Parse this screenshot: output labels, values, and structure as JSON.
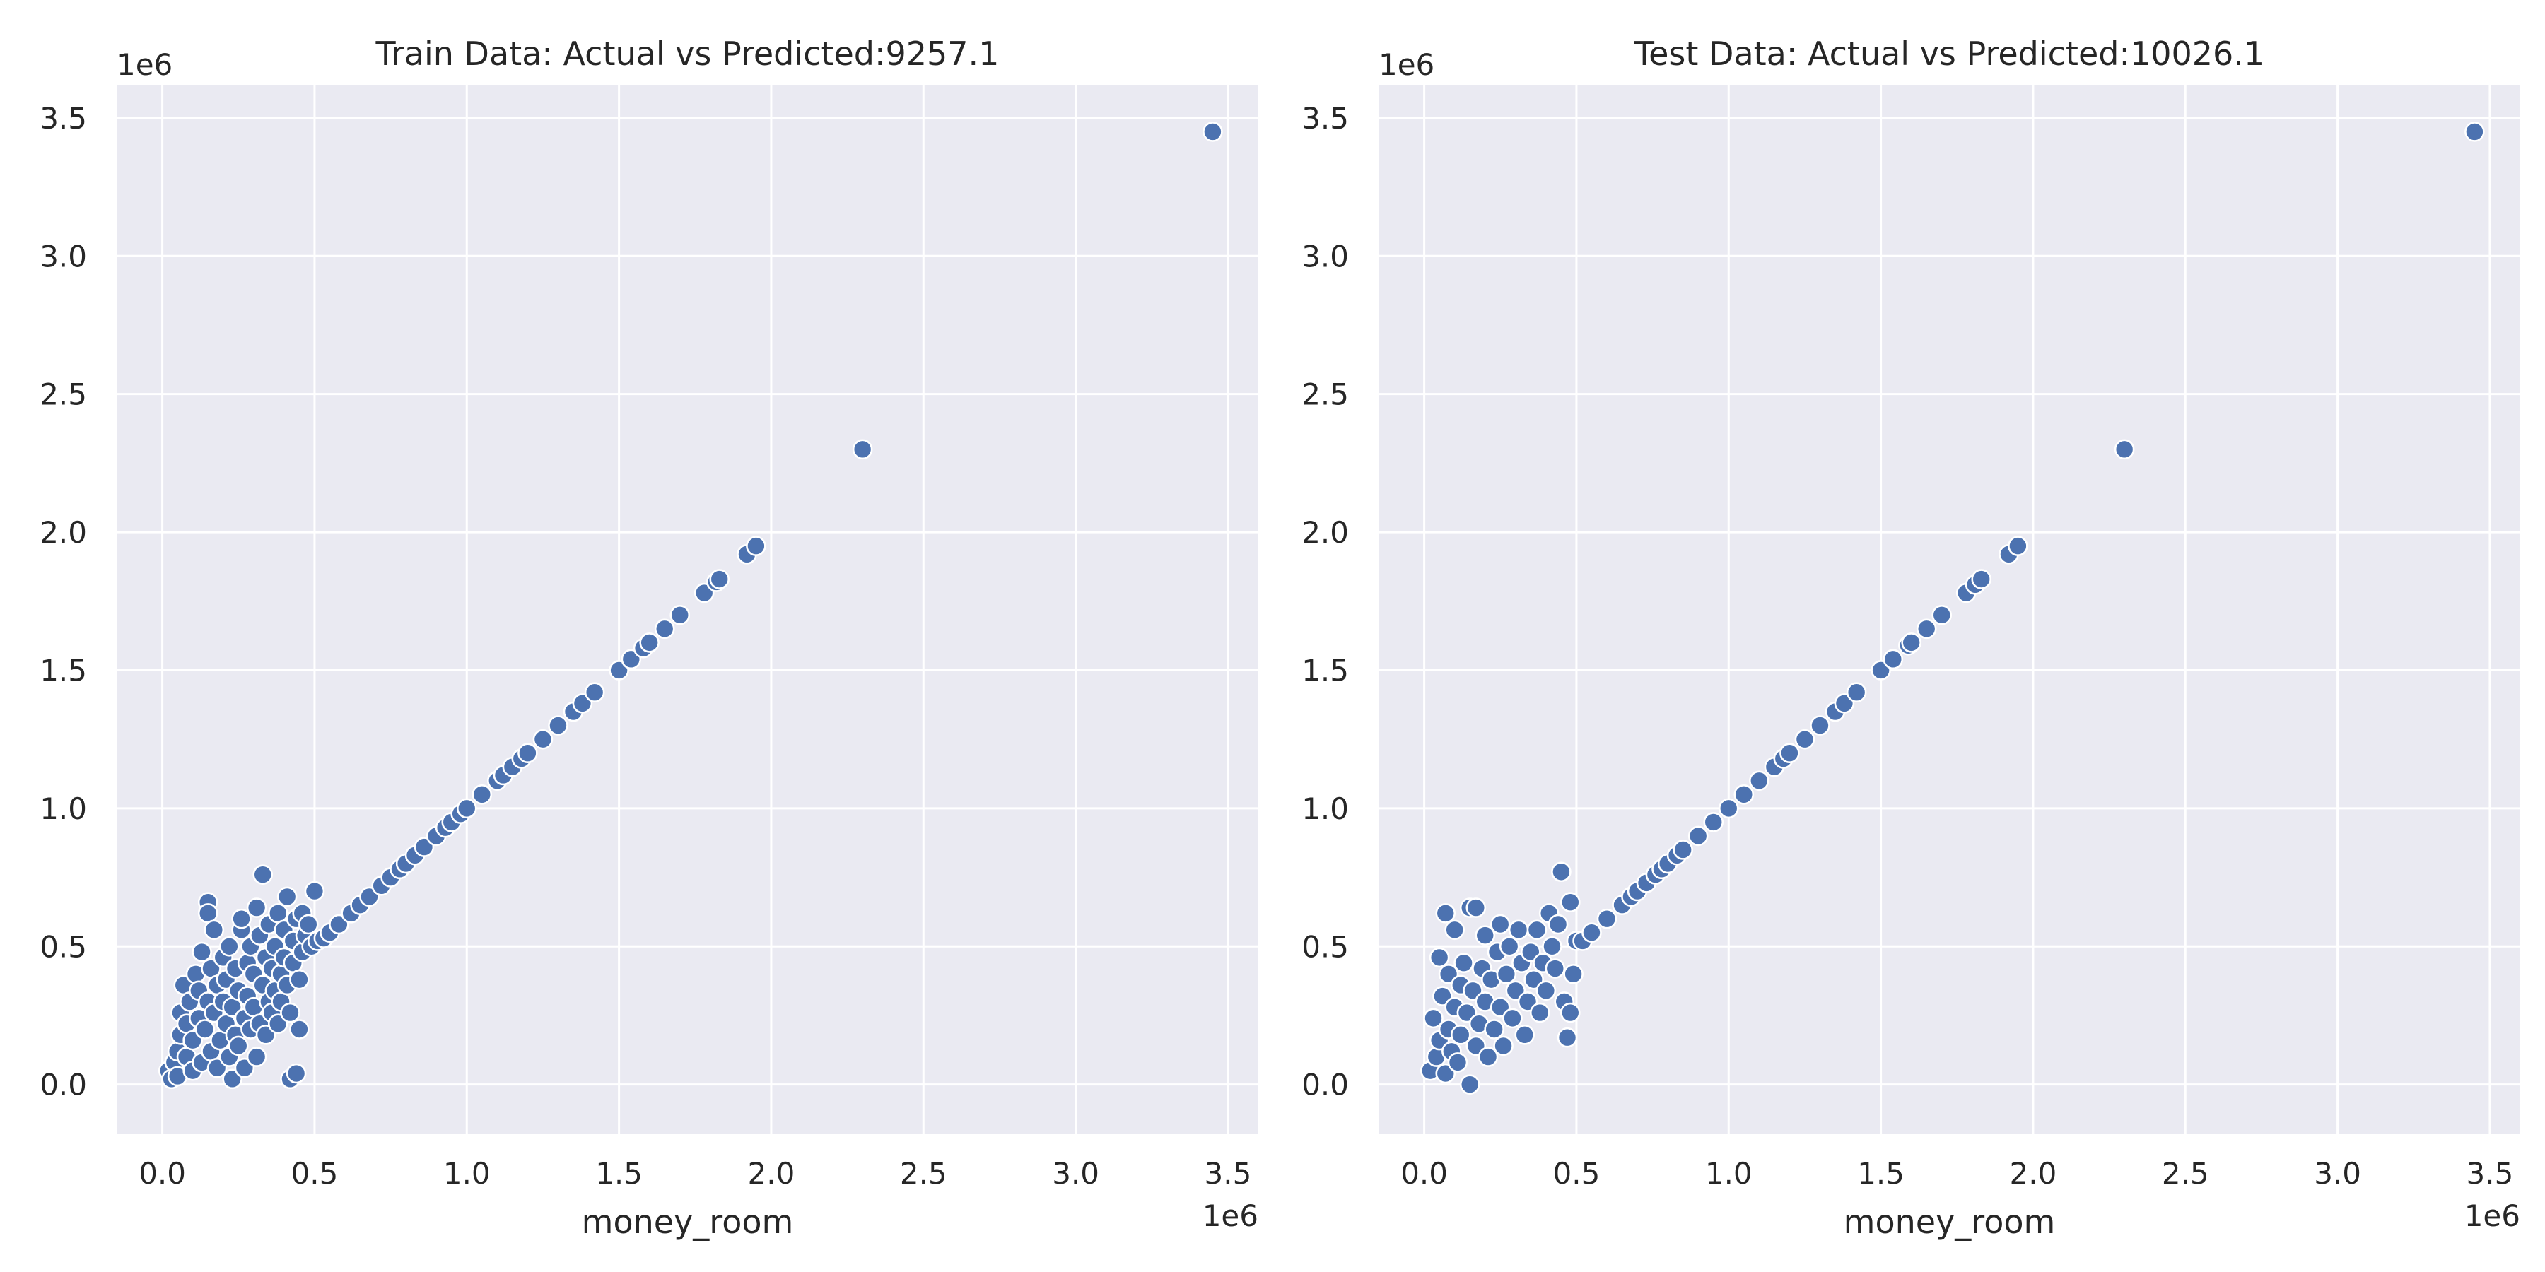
{
  "point_color": "#4c72b0",
  "background_color": "#eaeaf2",
  "chart_data": [
    {
      "type": "scatter",
      "title": "Train Data: Actual vs Predicted:9257.1",
      "xlabel": "money_room",
      "ylabel": "",
      "x_offset_label": "1e6",
      "y_offset_label": "1e6",
      "xlim": [
        -0.15,
        3.6
      ],
      "ylim": [
        -0.18,
        3.62
      ],
      "x_ticks": [
        0.0,
        0.5,
        1.0,
        1.5,
        2.0,
        2.5,
        3.0,
        3.5
      ],
      "x_tick_labels": [
        "0.0",
        "0.5",
        "1.0",
        "1.5",
        "2.0",
        "2.5",
        "3.0",
        "3.5"
      ],
      "y_ticks": [
        0.0,
        0.5,
        1.0,
        1.5,
        2.0,
        2.5,
        3.0,
        3.5
      ],
      "y_tick_labels": [
        "0.0",
        "0.5",
        "1.0",
        "1.5",
        "2.0",
        "2.5",
        "3.0",
        "3.5"
      ],
      "grid": true,
      "legend": "none",
      "series": [
        {
          "points": [
            [
              0.02,
              0.05
            ],
            [
              0.03,
              0.02
            ],
            [
              0.04,
              0.08
            ],
            [
              0.05,
              0.12
            ],
            [
              0.05,
              0.03
            ],
            [
              0.06,
              0.18
            ],
            [
              0.06,
              0.26
            ],
            [
              0.07,
              0.36
            ],
            [
              0.08,
              0.1
            ],
            [
              0.08,
              0.22
            ],
            [
              0.09,
              0.3
            ],
            [
              0.1,
              0.05
            ],
            [
              0.1,
              0.16
            ],
            [
              0.11,
              0.4
            ],
            [
              0.12,
              0.24
            ],
            [
              0.12,
              0.34
            ],
            [
              0.13,
              0.08
            ],
            [
              0.13,
              0.48
            ],
            [
              0.14,
              0.2
            ],
            [
              0.15,
              0.66
            ],
            [
              0.15,
              0.62
            ],
            [
              0.15,
              0.3
            ],
            [
              0.16,
              0.12
            ],
            [
              0.16,
              0.42
            ],
            [
              0.17,
              0.56
            ],
            [
              0.17,
              0.26
            ],
            [
              0.18,
              0.36
            ],
            [
              0.18,
              0.06
            ],
            [
              0.19,
              0.16
            ],
            [
              0.2,
              0.46
            ],
            [
              0.2,
              0.3
            ],
            [
              0.21,
              0.22
            ],
            [
              0.21,
              0.38
            ],
            [
              0.22,
              0.1
            ],
            [
              0.22,
              0.5
            ],
            [
              0.23,
              0.28
            ],
            [
              0.23,
              0.02
            ],
            [
              0.24,
              0.18
            ],
            [
              0.24,
              0.42
            ],
            [
              0.25,
              0.34
            ],
            [
              0.25,
              0.14
            ],
            [
              0.26,
              0.56
            ],
            [
              0.26,
              0.6
            ],
            [
              0.27,
              0.24
            ],
            [
              0.27,
              0.06
            ],
            [
              0.28,
              0.44
            ],
            [
              0.28,
              0.32
            ],
            [
              0.29,
              0.2
            ],
            [
              0.29,
              0.5
            ],
            [
              0.3,
              0.4
            ],
            [
              0.3,
              0.28
            ],
            [
              0.31,
              0.64
            ],
            [
              0.31,
              0.1
            ],
            [
              0.32,
              0.22
            ],
            [
              0.32,
              0.54
            ],
            [
              0.33,
              0.76
            ],
            [
              0.33,
              0.36
            ],
            [
              0.34,
              0.46
            ],
            [
              0.34,
              0.18
            ],
            [
              0.35,
              0.3
            ],
            [
              0.35,
              0.58
            ],
            [
              0.36,
              0.42
            ],
            [
              0.36,
              0.26
            ],
            [
              0.37,
              0.5
            ],
            [
              0.37,
              0.34
            ],
            [
              0.38,
              0.22
            ],
            [
              0.38,
              0.62
            ],
            [
              0.39,
              0.4
            ],
            [
              0.39,
              0.3
            ],
            [
              0.4,
              0.46
            ],
            [
              0.4,
              0.56
            ],
            [
              0.41,
              0.68
            ],
            [
              0.41,
              0.36
            ],
            [
              0.42,
              0.02
            ],
            [
              0.42,
              0.26
            ],
            [
              0.43,
              0.52
            ],
            [
              0.43,
              0.44
            ],
            [
              0.44,
              0.04
            ],
            [
              0.44,
              0.6
            ],
            [
              0.45,
              0.2
            ],
            [
              0.45,
              0.38
            ],
            [
              0.46,
              0.62
            ],
            [
              0.46,
              0.48
            ],
            [
              0.47,
              0.54
            ],
            [
              0.48,
              0.58
            ],
            [
              0.49,
              0.5
            ],
            [
              0.5,
              0.7
            ],
            [
              0.51,
              0.52
            ],
            [
              0.53,
              0.53
            ],
            [
              0.55,
              0.55
            ],
            [
              0.58,
              0.58
            ],
            [
              0.62,
              0.62
            ],
            [
              0.65,
              0.65
            ],
            [
              0.68,
              0.68
            ],
            [
              0.72,
              0.72
            ],
            [
              0.75,
              0.75
            ],
            [
              0.78,
              0.78
            ],
            [
              0.8,
              0.8
            ],
            [
              0.83,
              0.83
            ],
            [
              0.86,
              0.86
            ],
            [
              0.9,
              0.9
            ],
            [
              0.93,
              0.93
            ],
            [
              0.95,
              0.95
            ],
            [
              0.98,
              0.98
            ],
            [
              1.0,
              1.0
            ],
            [
              1.05,
              1.05
            ],
            [
              1.1,
              1.1
            ],
            [
              1.12,
              1.12
            ],
            [
              1.15,
              1.15
            ],
            [
              1.18,
              1.18
            ],
            [
              1.2,
              1.2
            ],
            [
              1.25,
              1.25
            ],
            [
              1.3,
              1.3
            ],
            [
              1.35,
              1.35
            ],
            [
              1.38,
              1.38
            ],
            [
              1.42,
              1.42
            ],
            [
              1.5,
              1.5
            ],
            [
              1.54,
              1.54
            ],
            [
              1.58,
              1.58
            ],
            [
              1.6,
              1.6
            ],
            [
              1.65,
              1.65
            ],
            [
              1.7,
              1.7
            ],
            [
              1.78,
              1.78
            ],
            [
              1.82,
              1.82
            ],
            [
              1.83,
              1.83
            ],
            [
              1.92,
              1.92
            ],
            [
              1.95,
              1.95
            ],
            [
              2.3,
              2.3
            ],
            [
              3.45,
              3.45
            ]
          ]
        }
      ]
    },
    {
      "type": "scatter",
      "title": "Test Data: Actual vs Predicted:10026.1",
      "xlabel": "money_room",
      "ylabel": "",
      "x_offset_label": "1e6",
      "y_offset_label": "1e6",
      "xlim": [
        -0.15,
        3.6
      ],
      "ylim": [
        -0.18,
        3.62
      ],
      "x_ticks": [
        0.0,
        0.5,
        1.0,
        1.5,
        2.0,
        2.5,
        3.0,
        3.5
      ],
      "x_tick_labels": [
        "0.0",
        "0.5",
        "1.0",
        "1.5",
        "2.0",
        "2.5",
        "3.0",
        "3.5"
      ],
      "y_ticks": [
        0.0,
        0.5,
        1.0,
        1.5,
        2.0,
        2.5,
        3.0,
        3.5
      ],
      "y_tick_labels": [
        "0.0",
        "0.5",
        "1.0",
        "1.5",
        "2.0",
        "2.5",
        "3.0",
        "3.5"
      ],
      "grid": true,
      "legend": "none",
      "series": [
        {
          "points": [
            [
              0.02,
              0.05
            ],
            [
              0.03,
              0.24
            ],
            [
              0.04,
              0.1
            ],
            [
              0.05,
              0.46
            ],
            [
              0.05,
              0.16
            ],
            [
              0.06,
              0.32
            ],
            [
              0.07,
              0.62
            ],
            [
              0.07,
              0.04
            ],
            [
              0.08,
              0.4
            ],
            [
              0.08,
              0.2
            ],
            [
              0.09,
              0.12
            ],
            [
              0.1,
              0.56
            ],
            [
              0.1,
              0.28
            ],
            [
              0.11,
              0.08
            ],
            [
              0.12,
              0.36
            ],
            [
              0.12,
              0.18
            ],
            [
              0.13,
              0.44
            ],
            [
              0.14,
              0.26
            ],
            [
              0.15,
              0.64
            ],
            [
              0.15,
              0.0
            ],
            [
              0.16,
              0.34
            ],
            [
              0.17,
              0.64
            ],
            [
              0.17,
              0.14
            ],
            [
              0.18,
              0.22
            ],
            [
              0.19,
              0.42
            ],
            [
              0.2,
              0.54
            ],
            [
              0.2,
              0.3
            ],
            [
              0.21,
              0.1
            ],
            [
              0.22,
              0.38
            ],
            [
              0.23,
              0.2
            ],
            [
              0.24,
              0.48
            ],
            [
              0.25,
              0.58
            ],
            [
              0.25,
              0.28
            ],
            [
              0.26,
              0.14
            ],
            [
              0.27,
              0.4
            ],
            [
              0.28,
              0.5
            ],
            [
              0.29,
              0.24
            ],
            [
              0.3,
              0.34
            ],
            [
              0.31,
              0.56
            ],
            [
              0.32,
              0.44
            ],
            [
              0.33,
              0.18
            ],
            [
              0.34,
              0.3
            ],
            [
              0.35,
              0.48
            ],
            [
              0.36,
              0.38
            ],
            [
              0.37,
              0.56
            ],
            [
              0.38,
              0.26
            ],
            [
              0.39,
              0.44
            ],
            [
              0.4,
              0.34
            ],
            [
              0.41,
              0.62
            ],
            [
              0.42,
              0.5
            ],
            [
              0.43,
              0.42
            ],
            [
              0.44,
              0.58
            ],
            [
              0.45,
              0.77
            ],
            [
              0.46,
              0.3
            ],
            [
              0.47,
              0.17
            ],
            [
              0.48,
              0.26
            ],
            [
              0.48,
              0.66
            ],
            [
              0.49,
              0.4
            ],
            [
              0.5,
              0.52
            ],
            [
              0.52,
              0.52
            ],
            [
              0.55,
              0.55
            ],
            [
              0.6,
              0.6
            ],
            [
              0.65,
              0.65
            ],
            [
              0.68,
              0.68
            ],
            [
              0.7,
              0.7
            ],
            [
              0.73,
              0.73
            ],
            [
              0.76,
              0.76
            ],
            [
              0.78,
              0.78
            ],
            [
              0.8,
              0.8
            ],
            [
              0.83,
              0.83
            ],
            [
              0.85,
              0.85
            ],
            [
              0.9,
              0.9
            ],
            [
              0.95,
              0.95
            ],
            [
              1.0,
              1.0
            ],
            [
              1.05,
              1.05
            ],
            [
              1.1,
              1.1
            ],
            [
              1.15,
              1.15
            ],
            [
              1.18,
              1.18
            ],
            [
              1.2,
              1.2
            ],
            [
              1.25,
              1.25
            ],
            [
              1.3,
              1.3
            ],
            [
              1.35,
              1.35
            ],
            [
              1.38,
              1.38
            ],
            [
              1.42,
              1.42
            ],
            [
              1.5,
              1.5
            ],
            [
              1.54,
              1.54
            ],
            [
              1.59,
              1.59
            ],
            [
              1.6,
              1.6
            ],
            [
              1.65,
              1.65
            ],
            [
              1.7,
              1.7
            ],
            [
              1.78,
              1.78
            ],
            [
              1.81,
              1.81
            ],
            [
              1.83,
              1.83
            ],
            [
              1.92,
              1.92
            ],
            [
              1.95,
              1.95
            ],
            [
              2.3,
              2.3
            ],
            [
              3.45,
              3.45
            ]
          ]
        }
      ]
    }
  ]
}
